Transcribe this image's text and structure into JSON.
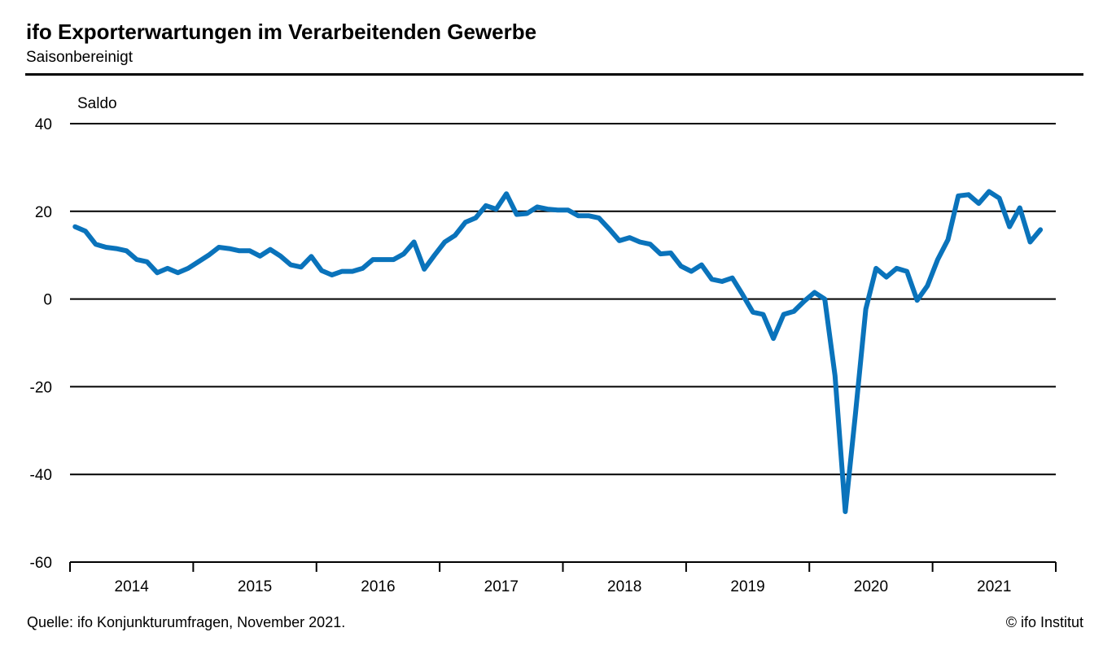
{
  "header": {
    "title": "ifo Exporterwartungen im Verarbeitenden Gewerbe",
    "subtitle": "Saisonbereinigt"
  },
  "footer": {
    "source": "Quelle: ifo Konjunkturumfragen,   November 2021.",
    "copyright": "© ifo Institut"
  },
  "colors": {
    "line": "#0a73bb",
    "grid": "#000000"
  },
  "chart_data": {
    "type": "line",
    "title": "ifo Exporterwartungen im Verarbeitenden Gewerbe",
    "subtitle": "Saisonbereinigt",
    "ylabel": "Saldo",
    "xlabel": "",
    "ylim": [
      -60,
      40
    ],
    "yticks": [
      40,
      20,
      0,
      -20,
      -40,
      -60
    ],
    "ytick_labels": [
      "40",
      "20",
      "0",
      "-20",
      "-40",
      "-60"
    ],
    "x_start": "2014-01",
    "x_end": "2021-11",
    "year_labels": [
      "2014",
      "2015",
      "2016",
      "2017",
      "2018",
      "2019",
      "2020",
      "2021"
    ],
    "grid": "horizontal",
    "series": [
      {
        "values": [
          16.5,
          15.5,
          12.5,
          11.8,
          11.5,
          11.0,
          9.0,
          8.5,
          6.0,
          7.0,
          6.0,
          7.0,
          8.5,
          10.0,
          11.8,
          11.5,
          11.0,
          11.0,
          9.8,
          11.3,
          9.8,
          7.8,
          7.3,
          9.7,
          6.5,
          5.5,
          6.3,
          6.3,
          7.0,
          9.0,
          9.0,
          9.0,
          10.3,
          13.0,
          6.8,
          10.0,
          13.0,
          14.5,
          17.5,
          18.5,
          21.3,
          20.5,
          24.0,
          19.3,
          19.5,
          21.0,
          20.5,
          20.3,
          20.3,
          19.0,
          19.0,
          18.5,
          16.0,
          13.3,
          14.0,
          13.0,
          12.5,
          10.3,
          10.5,
          7.5,
          6.3,
          7.8,
          4.5,
          4.0,
          4.8,
          1.0,
          -3.0,
          -3.5,
          -9.0,
          -3.5,
          -2.8,
          -0.5,
          1.5,
          0.0,
          -17.5,
          -48.5,
          -26.0,
          -2.3,
          7.0,
          5.0,
          7.0,
          6.3,
          -0.3,
          3.0,
          9.0,
          13.5,
          23.5,
          23.8,
          21.8,
          24.5,
          23.0,
          16.5,
          20.8,
          13.0,
          15.8
        ]
      }
    ]
  }
}
